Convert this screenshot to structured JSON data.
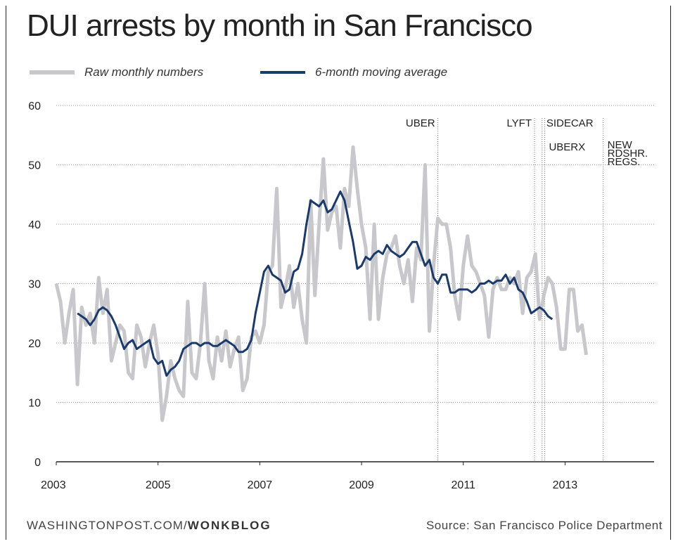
{
  "header": {
    "title": "DUI arrests by month in San Francisco"
  },
  "legend": {
    "raw_label": "Raw monthly numbers",
    "avg_label": "6-month moving average"
  },
  "footer": {
    "site": "WASHINGTONPOST.COM/",
    "site_bold": "WONKBLOG",
    "source": "Source: San Francisco Police Department"
  },
  "colors": {
    "raw": "#c8c8cc",
    "avg": "#1a3a6b",
    "grid": "#999999",
    "axis": "#222222"
  },
  "chart_data": {
    "type": "line",
    "title": "DUI arrests by month in San Francisco",
    "xlabel": "",
    "ylabel": "",
    "xlim": [
      2003,
      2014.75
    ],
    "ylim": [
      0,
      60
    ],
    "yticks": [
      0,
      10,
      20,
      30,
      40,
      50,
      60
    ],
    "xticks": [
      2003,
      2005,
      2007,
      2009,
      2011,
      2013
    ],
    "grid": true,
    "legend_position": "top-left",
    "x_start": 2003,
    "x_step": 0.08333,
    "series": [
      {
        "name": "Raw monthly numbers",
        "values": [
          30,
          27,
          20,
          25,
          29,
          13,
          26,
          23,
          25,
          20,
          31,
          25,
          29,
          17,
          20,
          23,
          22,
          15,
          14,
          23,
          21,
          16,
          20,
          23,
          18,
          7,
          11,
          17,
          14,
          12,
          11,
          27,
          15,
          14,
          20,
          30,
          17,
          14,
          21,
          17,
          22,
          16,
          19,
          21,
          12,
          14,
          21,
          22,
          20,
          23,
          32,
          33,
          46,
          26,
          29,
          33,
          26,
          30,
          24,
          20,
          44,
          28,
          40,
          51,
          39,
          42,
          43,
          36,
          46,
          43,
          53,
          46,
          40,
          36,
          24,
          40,
          24,
          31,
          35,
          36,
          38,
          33,
          30,
          34,
          27,
          36,
          34,
          50,
          22,
          33,
          41,
          40,
          40,
          36,
          28,
          24,
          33,
          38,
          33,
          32,
          30,
          28,
          21,
          29,
          31,
          29,
          29,
          31,
          30,
          32,
          25,
          31,
          32,
          35,
          24,
          28,
          31,
          30,
          26,
          19,
          19,
          29,
          29,
          22,
          23,
          18
        ],
        "color": "#c8c8cc"
      },
      {
        "name": "6-month moving average",
        "values": [
          25,
          24.5,
          24,
          23,
          24,
          25.5,
          26,
          25.5,
          24.5,
          23,
          21,
          19,
          20,
          20.5,
          19,
          19.5,
          20,
          20.5,
          17.5,
          16.5,
          17,
          14.5,
          15.5,
          16,
          17,
          19,
          19.5,
          20,
          20,
          19.5,
          20,
          20,
          19.5,
          19.5,
          20,
          20.5,
          20,
          19.5,
          18.5,
          18.5,
          19,
          20.5,
          25,
          28.5,
          32,
          33,
          31.5,
          31,
          30.5,
          28.5,
          29,
          32,
          32.5,
          35,
          40,
          44,
          43.5,
          43,
          44,
          42,
          42.5,
          44,
          45.5,
          44,
          40.5,
          37,
          32.5,
          33,
          34.5,
          34,
          35,
          35.5,
          35,
          36.5,
          35.5,
          35,
          34.5,
          35,
          36,
          37,
          37,
          35,
          33,
          34,
          31,
          30,
          31.5,
          31.5,
          28.5,
          28.5,
          29,
          29,
          29,
          28.5,
          29,
          30,
          30,
          30.5,
          30,
          30.5,
          30.5,
          31.5,
          30,
          31,
          29,
          28.5,
          27,
          25,
          25.5,
          26,
          25.5,
          24.5,
          24
        ],
        "x_offset_months": 5,
        "color": "#1a3a6b"
      }
    ],
    "annotations": [
      {
        "label": "UBER",
        "x": 2010.5
      },
      {
        "label": "LYFT",
        "x": 2012.4
      },
      {
        "label": "SIDECAR",
        "x": 2012.55
      },
      {
        "label": "UBERX",
        "x": 2012.6
      },
      {
        "label": "NEW RDSHR. REGS.",
        "x": 2013.75
      }
    ]
  }
}
